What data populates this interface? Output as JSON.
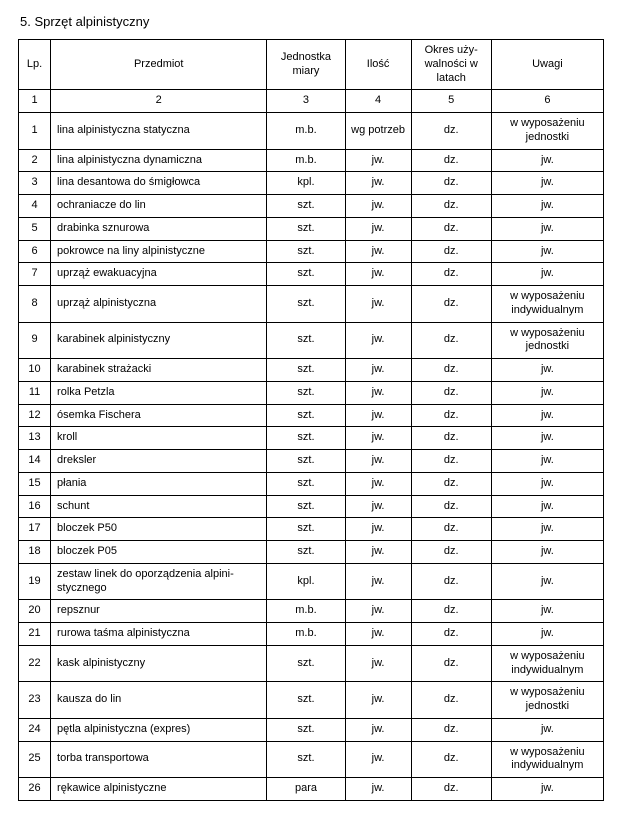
{
  "title": "5. Sprzęt alpinistyczny",
  "columns": [
    {
      "label": "Lp."
    },
    {
      "label": "Przedmiot"
    },
    {
      "label": "Jednostka miary"
    },
    {
      "label": "Ilość"
    },
    {
      "label": "Okres uży-\nwalności\nw latach"
    },
    {
      "label": "Uwagi"
    }
  ],
  "numRow": [
    "1",
    "2",
    "3",
    "4",
    "5",
    "6"
  ],
  "rows": [
    {
      "lp": "1",
      "item": "lina alpinistyczna statyczna",
      "unit": "m.b.",
      "qty": "wg potrzeb",
      "period": "dz.",
      "notes": "w wyposażeniu jednostki"
    },
    {
      "lp": "2",
      "item": "lina alpinistyczna dynamiczna",
      "unit": "m.b.",
      "qty": "jw.",
      "period": "dz.",
      "notes": "jw."
    },
    {
      "lp": "3",
      "item": "lina desantowa do śmigłowca",
      "unit": "kpl.",
      "qty": "jw.",
      "period": "dz.",
      "notes": "jw."
    },
    {
      "lp": "4",
      "item": "ochraniacze do lin",
      "unit": "szt.",
      "qty": "jw.",
      "period": "dz.",
      "notes": "jw."
    },
    {
      "lp": "5",
      "item": "drabinka sznurowa",
      "unit": "szt.",
      "qty": "jw.",
      "period": "dz.",
      "notes": "jw."
    },
    {
      "lp": "6",
      "item": "pokrowce na liny alpinistyczne",
      "unit": "szt.",
      "qty": "jw.",
      "period": "dz.",
      "notes": "jw."
    },
    {
      "lp": "7",
      "item": "uprząż ewakuacyjna",
      "unit": "szt.",
      "qty": "jw.",
      "period": "dz.",
      "notes": "jw."
    },
    {
      "lp": "8",
      "item": "uprząż alpinistyczna",
      "unit": "szt.",
      "qty": "jw.",
      "period": "dz.",
      "notes": "w wyposażeniu indywidualnym"
    },
    {
      "lp": "9",
      "item": "karabinek alpinistyczny",
      "unit": "szt.",
      "qty": "jw.",
      "period": "dz.",
      "notes": "w wyposażeniu jednostki"
    },
    {
      "lp": "10",
      "item": "karabinek strażacki",
      "unit": "szt.",
      "qty": "jw.",
      "period": "dz.",
      "notes": "jw."
    },
    {
      "lp": "11",
      "item": "rolka Petzla",
      "unit": "szt.",
      "qty": "jw.",
      "period": "dz.",
      "notes": "jw."
    },
    {
      "lp": "12",
      "item": "ósemka Fischera",
      "unit": "szt.",
      "qty": "jw.",
      "period": "dz.",
      "notes": "jw."
    },
    {
      "lp": "13",
      "item": "kroll",
      "unit": "szt.",
      "qty": "jw.",
      "period": "dz.",
      "notes": "jw."
    },
    {
      "lp": "14",
      "item": "dreksler",
      "unit": "szt.",
      "qty": "jw.",
      "period": "dz.",
      "notes": "jw."
    },
    {
      "lp": "15",
      "item": "płania",
      "unit": "szt.",
      "qty": "jw.",
      "period": "dz.",
      "notes": "jw."
    },
    {
      "lp": "16",
      "item": "schunt",
      "unit": "szt.",
      "qty": "jw.",
      "period": "dz.",
      "notes": "jw."
    },
    {
      "lp": "17",
      "item": "bloczek P50",
      "unit": "szt.",
      "qty": "jw.",
      "period": "dz.",
      "notes": "jw."
    },
    {
      "lp": "18",
      "item": "bloczek P05",
      "unit": "szt.",
      "qty": "jw.",
      "period": "dz.",
      "notes": "jw."
    },
    {
      "lp": "19",
      "item": "zestaw linek do oporządzenia alpini-\nstycznego",
      "unit": "kpl.",
      "qty": "jw.",
      "period": "dz.",
      "notes": "jw."
    },
    {
      "lp": "20",
      "item": "repsznur",
      "unit": "m.b.",
      "qty": "jw.",
      "period": "dz.",
      "notes": "jw."
    },
    {
      "lp": "21",
      "item": "rurowa taśma alpinistyczna",
      "unit": "m.b.",
      "qty": "jw.",
      "period": "dz.",
      "notes": "jw."
    },
    {
      "lp": "22",
      "item": "kask alpinistyczny",
      "unit": "szt.",
      "qty": "jw.",
      "period": "dz.",
      "notes": "w wyposażeniu indywidualnym"
    },
    {
      "lp": "23",
      "item": "kausza do lin",
      "unit": "szt.",
      "qty": "jw.",
      "period": "dz.",
      "notes": "w wyposażeniu jednostki"
    },
    {
      "lp": "24",
      "item": "pętla alpinistyczna (expres)",
      "unit": "szt.",
      "qty": "jw.",
      "period": "dz.",
      "notes": "jw."
    },
    {
      "lp": "25",
      "item": "torba transportowa",
      "unit": "szt.",
      "qty": "jw.",
      "period": "dz.",
      "notes": "w wyposażeniu indywidualnym"
    },
    {
      "lp": "26",
      "item": "rękawice alpinistyczne",
      "unit": "para",
      "qty": "jw.",
      "period": "dz.",
      "notes": "jw."
    }
  ]
}
